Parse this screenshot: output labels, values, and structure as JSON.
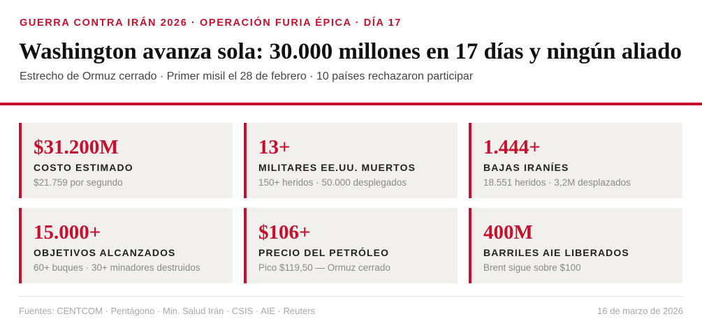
{
  "header": {
    "kicker": "GUERRA CONTRA IRÁN 2026 · OPERACIÓN FURIA ÉPICA · DÍA 17",
    "headline": "Washington avanza sola: 30.000 millones en 17 días y ningún aliado",
    "subhead": "Estrecho de Ormuz cerrado · Primer misil el 28 de febrero · 10 países rechazaron participar"
  },
  "colors": {
    "accent": "#c8102e",
    "card_bg": "#f2f0ed"
  },
  "cards": [
    {
      "value": "$31.200M",
      "label": "COSTO ESTIMADO",
      "detail": "$21.759 por segundo"
    },
    {
      "value": "13+",
      "label": "MILITARES EE.UU. MUERTOS",
      "detail": "150+ heridos · 50.000 desplegados"
    },
    {
      "value": "1.444+",
      "label": "BAJAS IRANÍES",
      "detail": "18.551 heridos · 3,2M desplazados"
    },
    {
      "value": "15.000+",
      "label": "OBJETIVOS ALCANZADOS",
      "detail": "60+ buques · 30+ minadores destruidos"
    },
    {
      "value": "$106+",
      "label": "PRECIO DEL PETRÓLEO",
      "detail": "Pico $119,50 — Ormuz cerrado"
    },
    {
      "value": "400M",
      "label": "BARRILES AIE LIBERADOS",
      "detail": "Brent sigue sobre $100"
    }
  ],
  "footer": {
    "sources": "Fuentes: CENTCOM · Pentágono · Min. Salud Irán · CSIS · AIE · Reuters",
    "date": "16 de marzo de 2026"
  }
}
